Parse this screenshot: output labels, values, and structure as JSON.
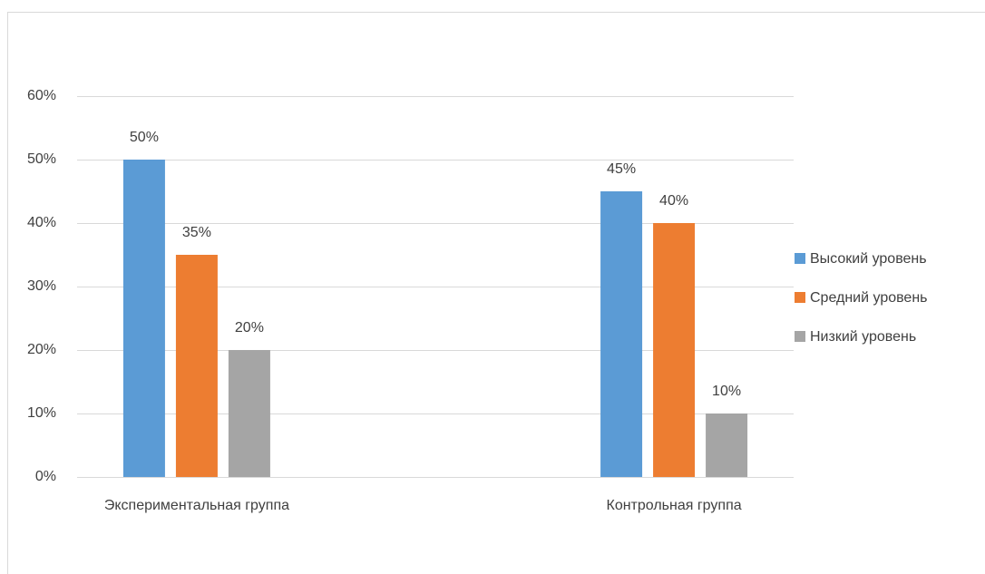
{
  "chart_data": {
    "type": "bar",
    "categories": [
      "Экспериментальная группа",
      "Контрольная группа"
    ],
    "series": [
      {
        "name": "Высокий уровень",
        "color": "#5b9bd5",
        "values": [
          50,
          45
        ],
        "value_labels": [
          "50%",
          "45%"
        ]
      },
      {
        "name": "Средний уровень",
        "color": "#ed7d31",
        "values": [
          35,
          40
        ],
        "value_labels": [
          "35%",
          "40%"
        ]
      },
      {
        "name": "Низкий уровень",
        "color": "#a5a5a5",
        "values": [
          20,
          10
        ],
        "value_labels": [
          "20%",
          "10%"
        ]
      }
    ],
    "ylim": [
      0,
      60
    ],
    "yticks": [
      {
        "value": 0,
        "label": "0%"
      },
      {
        "value": 10,
        "label": "10%"
      },
      {
        "value": 20,
        "label": "20%"
      },
      {
        "value": 30,
        "label": "30%"
      },
      {
        "value": 40,
        "label": "40%"
      },
      {
        "value": 50,
        "label": "50%"
      },
      {
        "value": 60,
        "label": "60%"
      }
    ],
    "grid": true,
    "legend": "right"
  }
}
